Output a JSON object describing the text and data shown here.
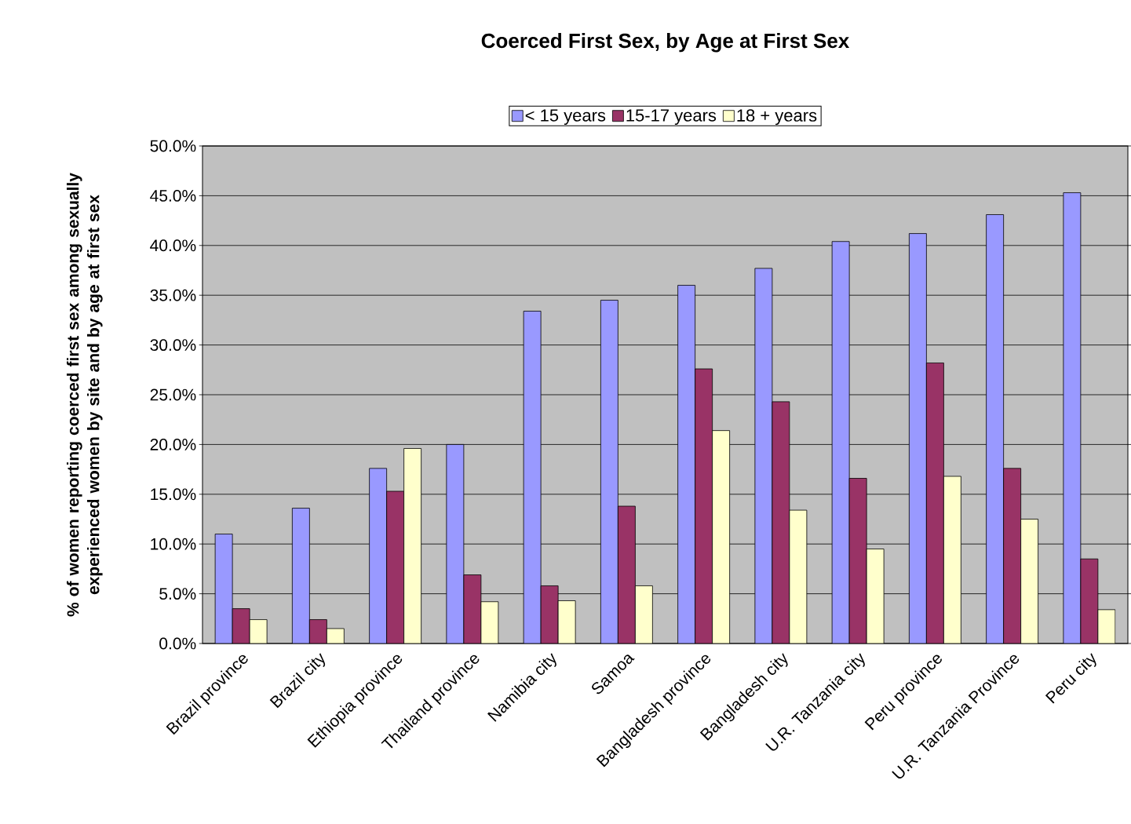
{
  "chart_data": {
    "type": "bar",
    "title": "Coerced First Sex, by Age at First Sex",
    "ylabel": "% of women reporting coerced first sex among sexually experienced women by site and by age at first sex",
    "categories": [
      "Brazil province",
      "Brazil city",
      "Ethiopia province",
      "Thailand province",
      "Namibia city",
      "Samoa",
      "Bangladesh province",
      "Bangladesh city",
      "U.R. Tanzania city",
      "Peru province",
      "U.R. Tanzania Province",
      "Peru city"
    ],
    "series": [
      {
        "name": "< 15 years",
        "color": "#9999ff",
        "values": [
          11.0,
          13.6,
          17.6,
          20.0,
          33.4,
          34.5,
          36.0,
          37.7,
          40.4,
          41.2,
          43.1,
          45.3
        ]
      },
      {
        "name": "15-17 years",
        "color": "#993366",
        "values": [
          3.5,
          2.4,
          15.3,
          6.9,
          5.8,
          13.8,
          27.6,
          24.3,
          16.6,
          28.2,
          17.6,
          8.5
        ]
      },
      {
        "name": "18 + years",
        "color": "#ffffcc",
        "values": [
          2.4,
          1.5,
          19.6,
          4.2,
          4.3,
          5.8,
          21.4,
          13.4,
          9.5,
          16.8,
          12.5,
          3.4
        ]
      }
    ],
    "ylim": [
      0,
      50
    ],
    "yticks": [
      {
        "value": 0,
        "label": "0.0%"
      },
      {
        "value": 5,
        "label": "5.0%"
      },
      {
        "value": 10,
        "label": "10.0%"
      },
      {
        "value": 15,
        "label": "15.0%"
      },
      {
        "value": 20,
        "label": "20.0%"
      },
      {
        "value": 25,
        "label": "25.0%"
      },
      {
        "value": 30,
        "label": "30.0%"
      },
      {
        "value": 35,
        "label": "35.0%"
      },
      {
        "value": 40,
        "label": "40.0%"
      },
      {
        "value": 45,
        "label": "45.0%"
      },
      {
        "value": 50,
        "label": "50.0%"
      }
    ],
    "grid": "y",
    "legend": "top"
  }
}
